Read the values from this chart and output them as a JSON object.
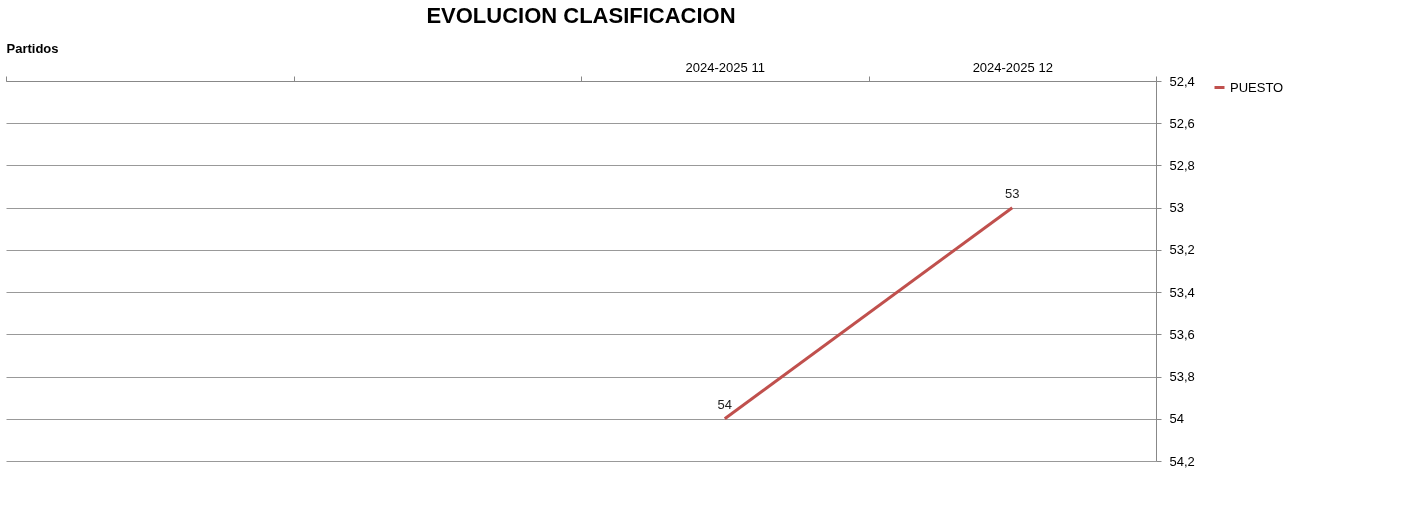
{
  "chart_data": {
    "type": "line",
    "title": "EVOLUCION CLASIFICACION",
    "xlabel": "Partidos",
    "categories": [
      null,
      null,
      "2024-2025 11",
      "2024-2025 12"
    ],
    "series": [
      {
        "name": "PUESTO",
        "color": "#c0504d",
        "values": [
          null,
          null,
          54,
          53
        ]
      }
    ],
    "ylim": [
      54.2,
      52.4
    ],
    "yticks": [
      {
        "value": 52.4,
        "label": "52,4"
      },
      {
        "value": 52.6,
        "label": "52,6"
      },
      {
        "value": 52.8,
        "label": "52,8"
      },
      {
        "value": 53,
        "label": "53"
      },
      {
        "value": 53.2,
        "label": "53,2"
      },
      {
        "value": 53.4,
        "label": "53,4"
      },
      {
        "value": 53.6,
        "label": "53,6"
      },
      {
        "value": 53.8,
        "label": "53,8"
      },
      {
        "value": 54,
        "label": "54"
      },
      {
        "value": 54.2,
        "label": "54,2"
      }
    ],
    "grid": "y",
    "legend": "right",
    "data_labels": true,
    "marker": "none",
    "line_style": "solid"
  }
}
